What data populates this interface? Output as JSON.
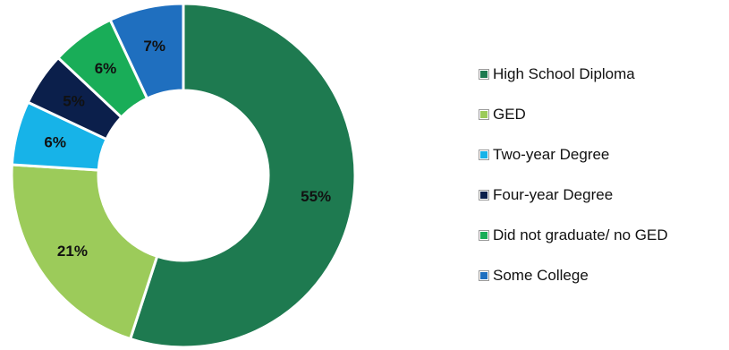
{
  "chart_data": {
    "type": "pie",
    "donut": true,
    "title": "",
    "legend_position": "right",
    "slices": [
      {
        "label": "High School Diploma",
        "value": 55,
        "display": "55%",
        "color": "#1e7a50"
      },
      {
        "label": "GED",
        "value": 21,
        "display": "21%",
        "color": "#9ccb5a"
      },
      {
        "label": "Two-year Degree",
        "value": 6,
        "display": "6%",
        "color": "#17b3e8"
      },
      {
        "label": "Four-year Degree",
        "value": 5,
        "display": "5%",
        "color": "#0b1f4b"
      },
      {
        "label": "Did not graduate/ no GED",
        "value": 6,
        "display": "6%",
        "color": "#19ad58"
      },
      {
        "label": "Some College",
        "value": 7,
        "display": "7%",
        "color": "#1f6fbf"
      }
    ]
  }
}
